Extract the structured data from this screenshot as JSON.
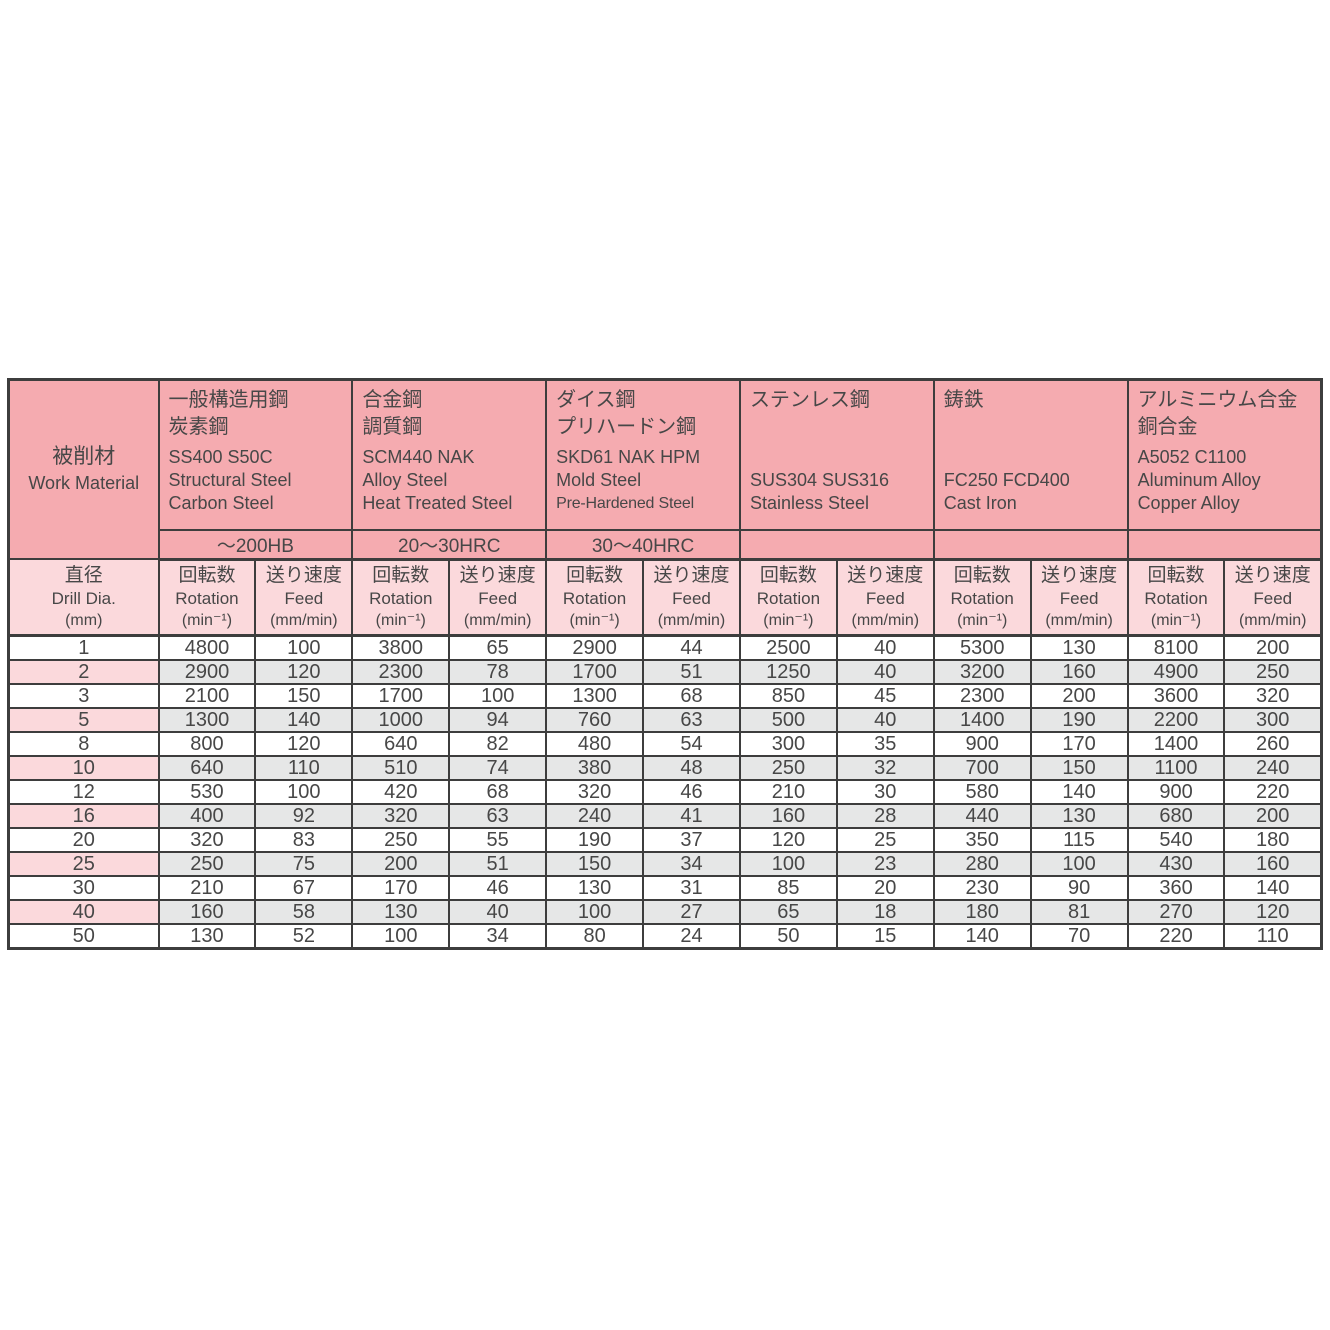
{
  "colors": {
    "header_pink": "#f5abb0",
    "light_pink": "#fbd9dc",
    "alt_row_gray": "#e6e7e7",
    "border": "#3d3d3d",
    "text": "#474747",
    "background": "#ffffff"
  },
  "table": {
    "corner": {
      "jp": "被削材",
      "en": "Work Material"
    },
    "dia_header": {
      "jp": "直径",
      "en": "Drill Dia.",
      "unit": "(mm)"
    },
    "sub_header": {
      "rotation_jp": "回転数",
      "rotation_en": "Rotation",
      "rotation_unit": "(min⁻¹)",
      "feed_jp": "送り速度",
      "feed_en": "Feed",
      "feed_unit": "(mm/min)"
    },
    "materials": [
      {
        "jp": [
          "一般構造用鋼",
          "炭素鋼"
        ],
        "en": [
          "SS400 S50C",
          "Structural Steel",
          "Carbon Steel"
        ],
        "hardness": "～200HB"
      },
      {
        "jp": [
          "合金鋼",
          "調質鋼"
        ],
        "en": [
          "SCM440 NAK",
          "Alloy Steel",
          "Heat Treated Steel"
        ],
        "hardness": "20～30HRC"
      },
      {
        "jp": [
          "ダイス鋼",
          "プリハードン鋼"
        ],
        "en": [
          "SKD61 NAK HPM",
          "Mold Steel",
          "Pre-Hardened Steel"
        ],
        "hardness": "30～40HRC"
      },
      {
        "jp": [
          "ステンレス鋼"
        ],
        "en": [
          "SUS304 SUS316",
          "Stainless Steel"
        ],
        "hardness": ""
      },
      {
        "jp": [
          "鋳鉄"
        ],
        "en": [
          "FC250  FCD400",
          "Cast Iron"
        ],
        "hardness": ""
      },
      {
        "jp": [
          "アルミニウム合金",
          "銅合金"
        ],
        "en": [
          "A5052 C1100",
          "Aluminum Alloy",
          "Copper Alloy"
        ],
        "hardness": ""
      }
    ],
    "rows": [
      {
        "dia": "1",
        "values": [
          4800,
          100,
          3800,
          65,
          2900,
          44,
          2500,
          40,
          5300,
          130,
          8100,
          200
        ]
      },
      {
        "dia": "2",
        "values": [
          2900,
          120,
          2300,
          78,
          1700,
          51,
          1250,
          40,
          3200,
          160,
          4900,
          250
        ]
      },
      {
        "dia": "3",
        "values": [
          2100,
          150,
          1700,
          100,
          1300,
          68,
          850,
          45,
          2300,
          200,
          3600,
          320
        ]
      },
      {
        "dia": "5",
        "values": [
          1300,
          140,
          1000,
          94,
          760,
          63,
          500,
          40,
          1400,
          190,
          2200,
          300
        ]
      },
      {
        "dia": "8",
        "values": [
          800,
          120,
          640,
          82,
          480,
          54,
          300,
          35,
          900,
          170,
          1400,
          260
        ]
      },
      {
        "dia": "10",
        "values": [
          640,
          110,
          510,
          74,
          380,
          48,
          250,
          32,
          700,
          150,
          1100,
          240
        ]
      },
      {
        "dia": "12",
        "values": [
          530,
          100,
          420,
          68,
          320,
          46,
          210,
          30,
          580,
          140,
          900,
          220
        ]
      },
      {
        "dia": "16",
        "values": [
          400,
          92,
          320,
          63,
          240,
          41,
          160,
          28,
          440,
          130,
          680,
          200
        ]
      },
      {
        "dia": "20",
        "values": [
          320,
          83,
          250,
          55,
          190,
          37,
          120,
          25,
          350,
          115,
          540,
          180
        ]
      },
      {
        "dia": "25",
        "values": [
          250,
          75,
          200,
          51,
          150,
          34,
          100,
          23,
          280,
          100,
          430,
          160
        ]
      },
      {
        "dia": "30",
        "values": [
          210,
          67,
          170,
          46,
          130,
          31,
          85,
          20,
          230,
          90,
          360,
          140
        ]
      },
      {
        "dia": "40",
        "values": [
          160,
          58,
          130,
          40,
          100,
          27,
          65,
          18,
          180,
          81,
          270,
          120
        ]
      },
      {
        "dia": "50",
        "values": [
          130,
          52,
          100,
          34,
          80,
          24,
          50,
          15,
          140,
          70,
          220,
          110
        ]
      }
    ]
  }
}
